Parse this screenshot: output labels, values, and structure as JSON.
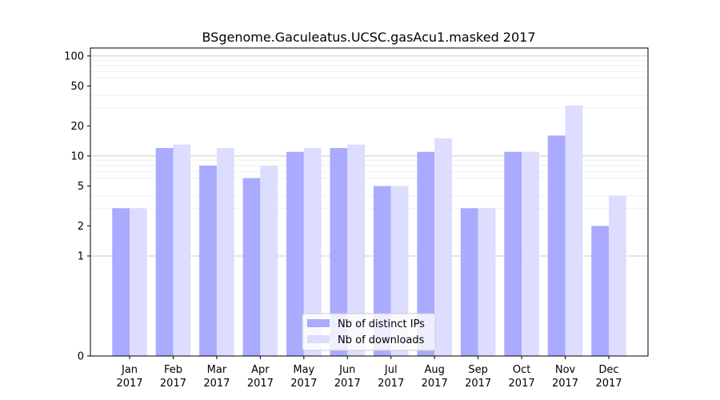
{
  "chart_data": {
    "type": "bar",
    "title": "BSgenome.Gaculeatus.UCSC.gasAcu1.masked 2017",
    "xlabel": "",
    "ylabel": "",
    "y_scale": "symlog",
    "ylim": [
      0,
      120
    ],
    "y_ticks": [
      0,
      1,
      2,
      5,
      10,
      20,
      50,
      100
    ],
    "grid": "horizontal",
    "legend_position": "lower-center",
    "categories": [
      {
        "month": "Jan",
        "year": "2017"
      },
      {
        "month": "Feb",
        "year": "2017"
      },
      {
        "month": "Mar",
        "year": "2017"
      },
      {
        "month": "Apr",
        "year": "2017"
      },
      {
        "month": "May",
        "year": "2017"
      },
      {
        "month": "Jun",
        "year": "2017"
      },
      {
        "month": "Jul",
        "year": "2017"
      },
      {
        "month": "Aug",
        "year": "2017"
      },
      {
        "month": "Sep",
        "year": "2017"
      },
      {
        "month": "Oct",
        "year": "2017"
      },
      {
        "month": "Nov",
        "year": "2017"
      },
      {
        "month": "Dec",
        "year": "2017"
      }
    ],
    "series": [
      {
        "name": "Nb of distinct IPs",
        "color": "#aaaaff",
        "values": [
          3,
          12,
          8,
          6,
          11,
          12,
          5,
          11,
          3,
          11,
          16,
          2
        ]
      },
      {
        "name": "Nb of downloads",
        "color": "#ddddff",
        "values": [
          3,
          13,
          12,
          8,
          12,
          13,
          5,
          15,
          3,
          11,
          32,
          4
        ]
      }
    ]
  }
}
